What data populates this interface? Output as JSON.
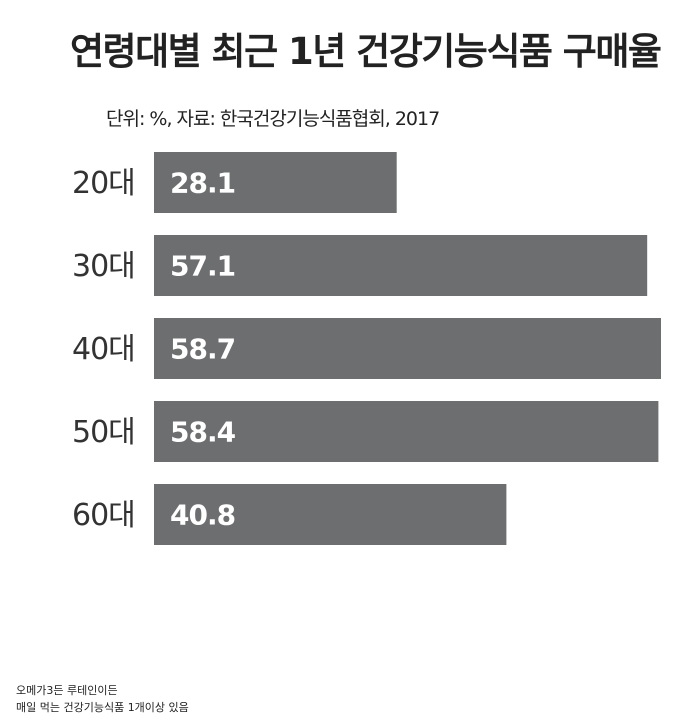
{
  "chart_data": {
    "type": "bar",
    "orientation": "horizontal",
    "title": "연령대별 최근 1년 건강기능식품 구매율",
    "subtitle": "단위: %, 자료: 한국건강기능식품협회, 2017",
    "categories": [
      "20대",
      "30대",
      "40대",
      "50대",
      "60대"
    ],
    "values": [
      28.1,
      57.1,
      58.7,
      58.4,
      40.8
    ],
    "color": "#6d6e70",
    "annotations": [
      "오메가3든 루테인이든",
      "매일 먹는 건강기능식품 1개이상 있음"
    ]
  }
}
